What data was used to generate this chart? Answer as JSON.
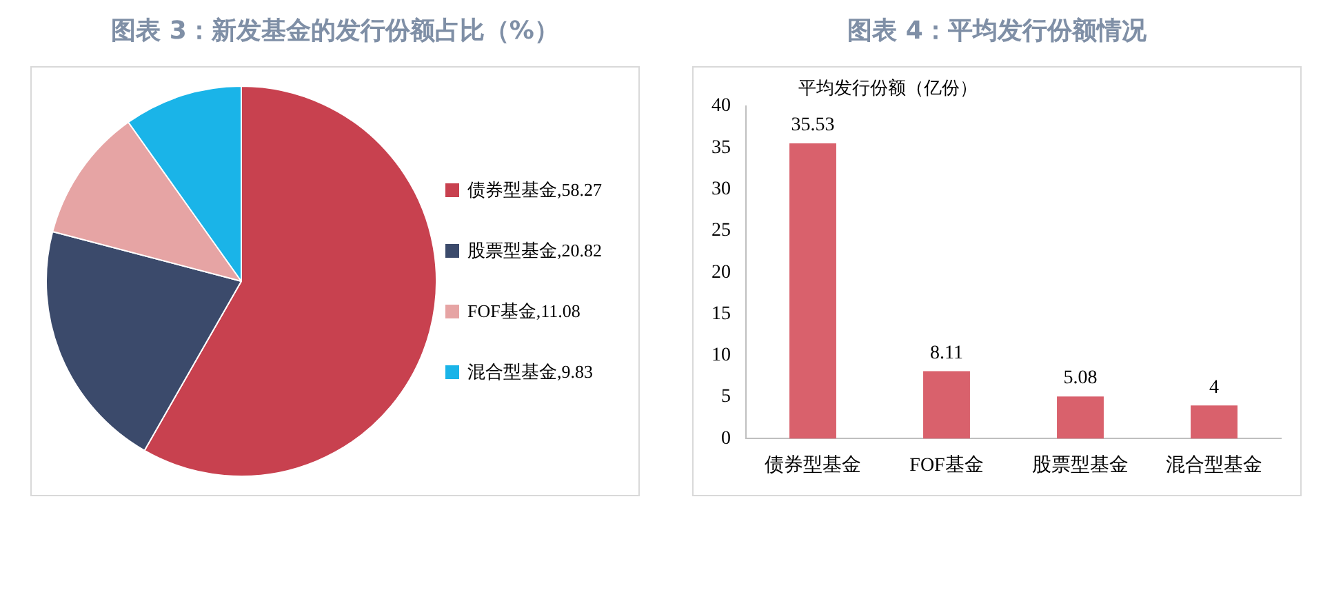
{
  "chart_data": [
    {
      "type": "pie",
      "title": "图表 3：新发基金的发行份额占比（%）",
      "categories": [
        "债券型基金,58.27",
        "股票型基金,20.82",
        "FOF基金,11.08",
        "混合型基金,9.83"
      ],
      "values": [
        58.27,
        20.82,
        11.08,
        9.83
      ],
      "colors": [
        "#c8414f",
        "#3b4a6b",
        "#e6a4a4",
        "#1ab4e8"
      ],
      "legend": "right"
    },
    {
      "type": "bar",
      "title": "图表 4：平均发行份额情况",
      "ylabel": "平均发行份额（亿份）",
      "categories": [
        "债券型基金",
        "FOF基金",
        "股票型基金",
        "混合型基金"
      ],
      "values": [
        35.53,
        8.11,
        5.08,
        4
      ],
      "color": "#d9616c",
      "ylim": [
        0,
        40
      ],
      "yticks": [
        0,
        5,
        10,
        15,
        20,
        25,
        30,
        35,
        40
      ],
      "grid": false,
      "legend": false,
      "data_labels": true
    }
  ]
}
